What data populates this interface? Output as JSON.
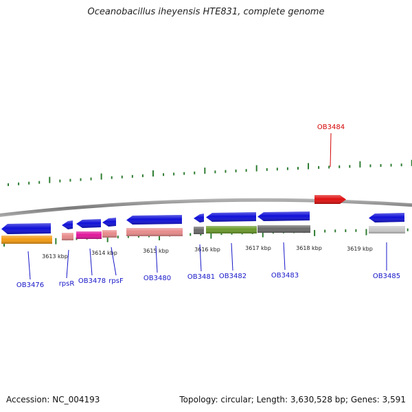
{
  "title": "Oceanobacillus iheyensis HTE831, complete genome",
  "accession": "Accession: NC_004193",
  "summary": "Topology: circular; Length: 3,630,528 bp; Genes: 3,591",
  "kbp_ticks": [
    "3613 kbp",
    "3614 kbp",
    "3615 kbp",
    "3616 kbp",
    "3617 kbp",
    "3618 kbp",
    "3619 kbp"
  ],
  "colors": {
    "backbone": "#8a8a8a",
    "tick": "#2e7d32",
    "cds": "#1010d8",
    "cds_highlight": "#e01010",
    "label_blue": "#1515c8",
    "label_red": "#d40000",
    "cog_orange": "#f39a12",
    "cog_salmon": "#e88a8a",
    "cog_magenta": "#e0159a",
    "cog_gray": "#6a6a6a",
    "cog_olive": "#6a9a2a",
    "cog_light_gray": "#c8c8c8"
  },
  "genes": [
    {
      "name": "OB3476",
      "strand": "reverse",
      "cog_color": "cog_orange",
      "highlight": false
    },
    {
      "name": "rpsR",
      "strand": "reverse",
      "cog_color": "cog_salmon",
      "highlight": false
    },
    {
      "name": "OB3478",
      "strand": "reverse",
      "cog_color": "cog_magenta",
      "highlight": false
    },
    {
      "name": "rpsF",
      "strand": "reverse",
      "cog_color": "cog_salmon",
      "highlight": false
    },
    {
      "name": "OB3480",
      "strand": "reverse",
      "cog_color": "cog_salmon",
      "highlight": false
    },
    {
      "name": "OB3481",
      "strand": "reverse",
      "cog_color": "cog_gray",
      "highlight": false
    },
    {
      "name": "OB3482",
      "strand": "reverse",
      "cog_color": "cog_olive",
      "highlight": false
    },
    {
      "name": "OB3483",
      "strand": "reverse",
      "cog_color": "cog_gray",
      "highlight": false
    },
    {
      "name": "OB3484",
      "strand": "forward",
      "cog_color": null,
      "highlight": true
    },
    {
      "name": "OB3485",
      "strand": "reverse",
      "cog_color": "cog_light_gray",
      "highlight": false
    }
  ]
}
